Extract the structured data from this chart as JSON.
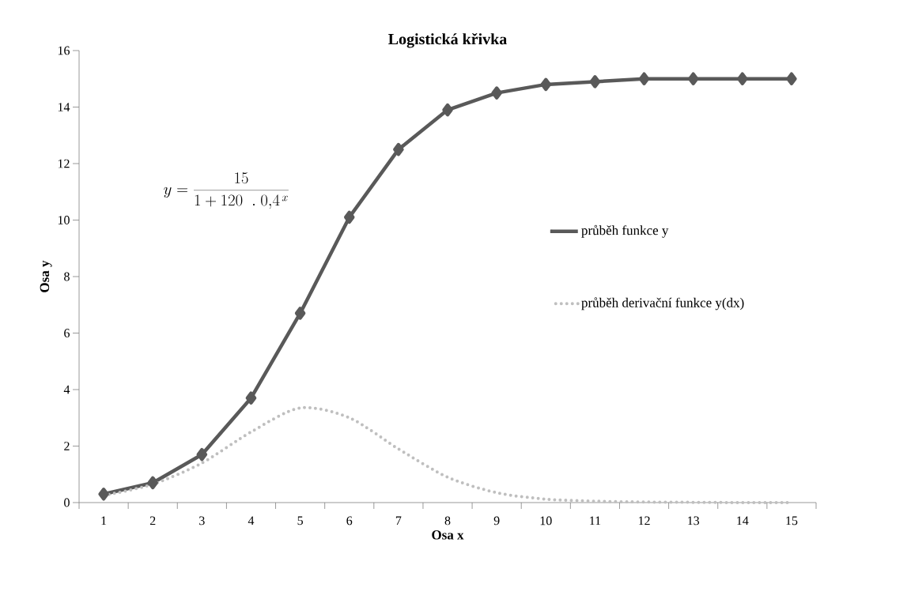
{
  "chart_data": {
    "type": "line",
    "title": "Logistická křivka",
    "xlabel": "Osa x",
    "ylabel": "Osa y",
    "annotations": [
      "y = \\frac{15}{1+120\\ \\ .\\ 0{,}4^{\\,x}}"
    ],
    "categories": [
      "1",
      "2",
      "3",
      "4",
      "5",
      "6",
      "7",
      "8",
      "9",
      "10",
      "11",
      "12",
      "13",
      "14",
      "15"
    ],
    "series": [
      {
        "name": "průběh funkce y",
        "color": "#595959",
        "marker": "diamond",
        "line_style": "solid",
        "values": [
          0.3,
          0.7,
          1.7,
          3.7,
          6.7,
          10.1,
          12.5,
          13.9,
          14.5,
          14.8,
          14.9,
          15.0,
          15.0,
          15.0,
          15.0
        ]
      },
      {
        "name": "průběh derivační funkce y(dx)",
        "color": "#bfbfbf",
        "marker": "none",
        "line_style": "dotted",
        "values": [
          0.25,
          0.65,
          1.4,
          2.5,
          3.35,
          3.0,
          1.9,
          0.9,
          0.35,
          0.12,
          0.05,
          0.02,
          0.01,
          0.0,
          0.0
        ]
      }
    ],
    "ylim": [
      0,
      16
    ],
    "yticks": [
      0,
      2,
      4,
      6,
      8,
      10,
      12,
      14,
      16
    ],
    "grid": false,
    "legend": "right"
  }
}
